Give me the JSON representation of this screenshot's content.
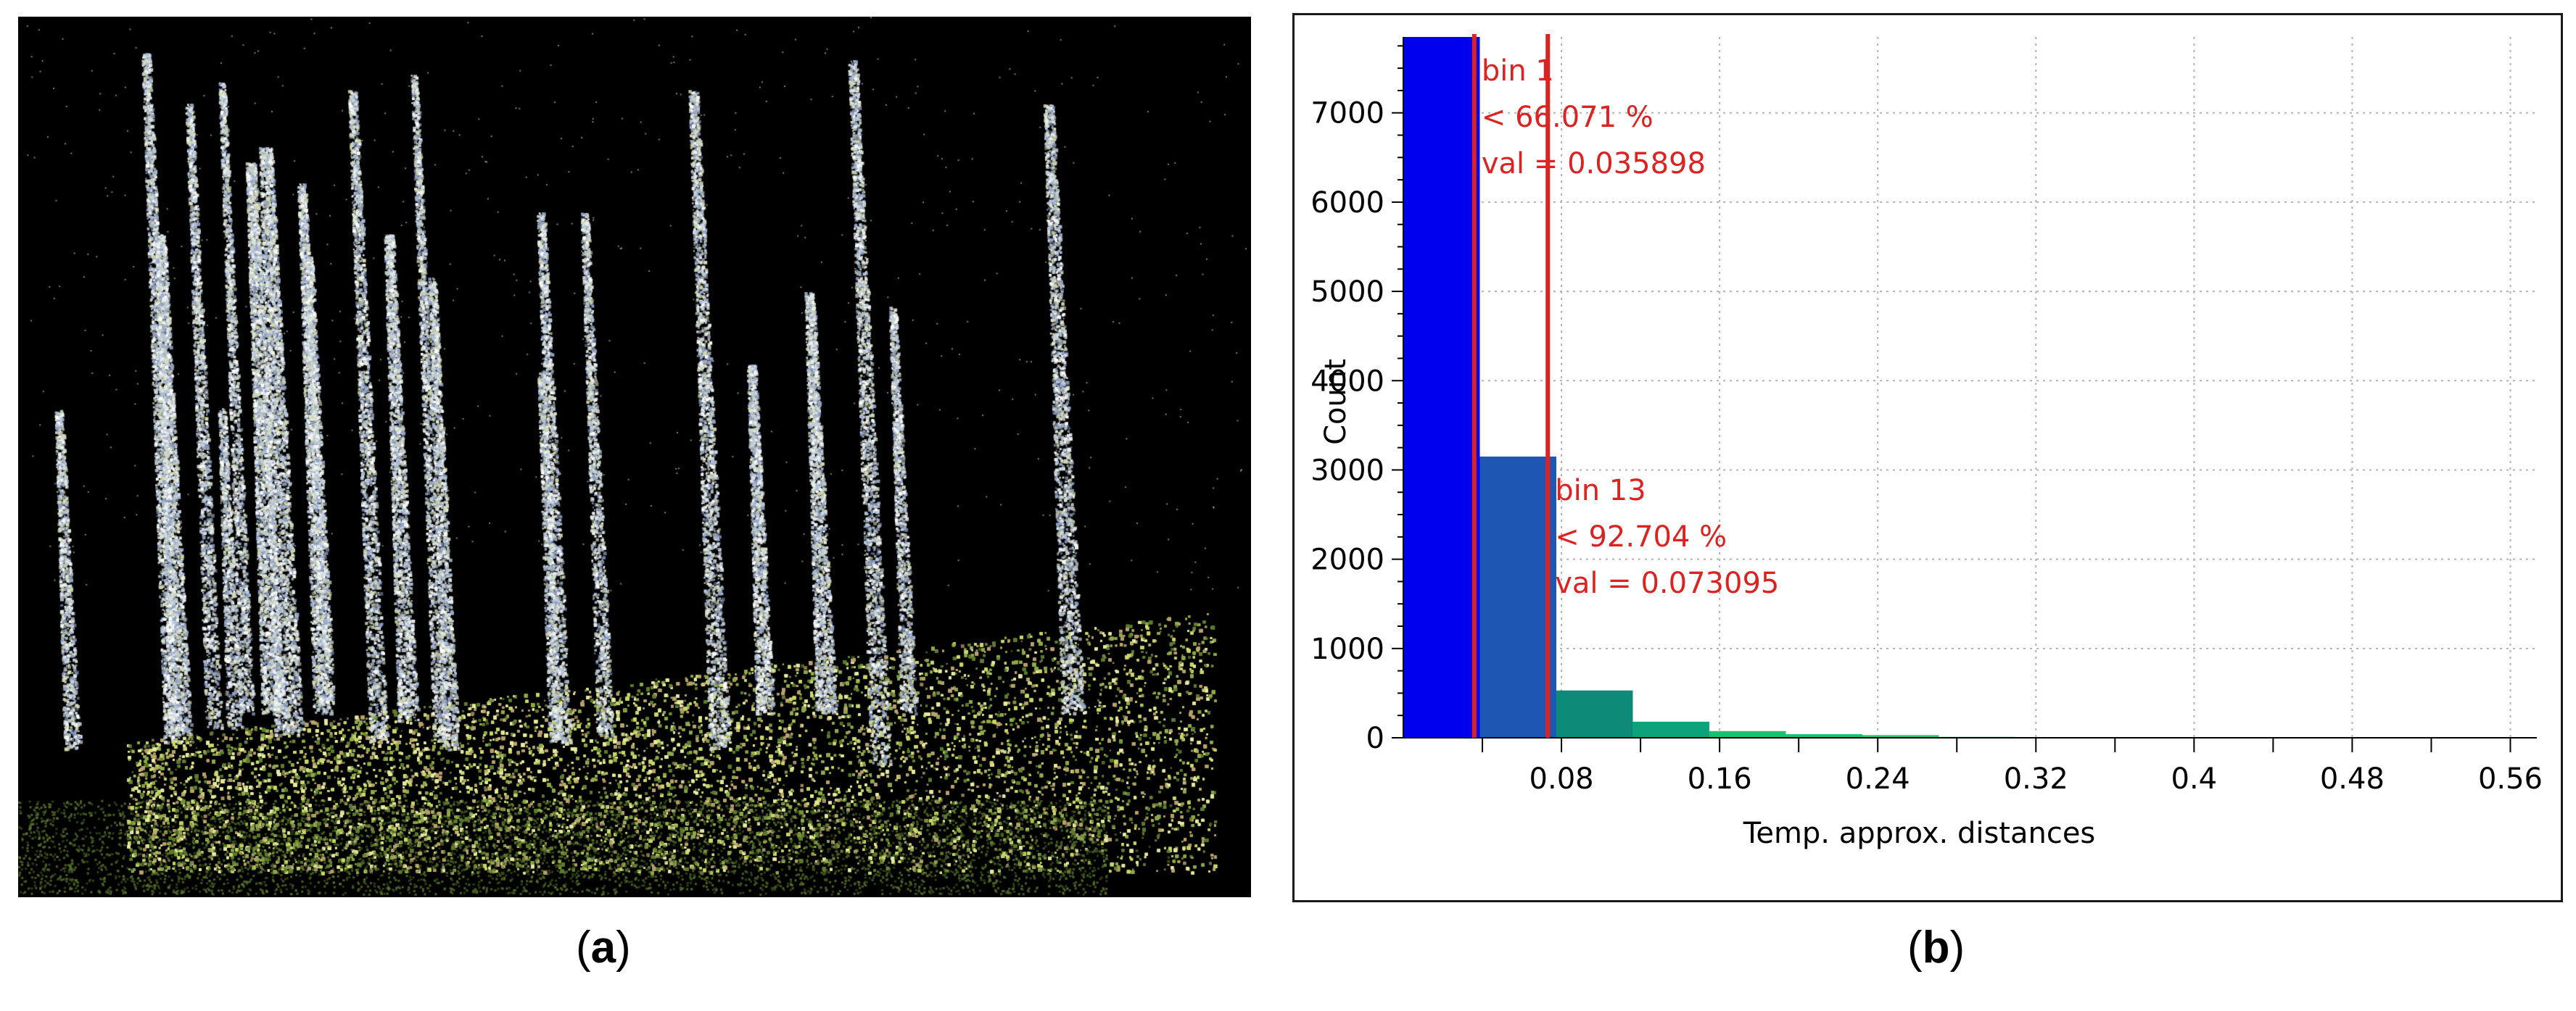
{
  "panels": {
    "a": {
      "open": "(",
      "letter": "a",
      "close": ")"
    },
    "b": {
      "open": "(",
      "letter": "b",
      "close": ")"
    }
  },
  "point_cloud": {
    "description_icon": "point-cloud-image",
    "background": "#000000",
    "ground_colors": [
      "#c9d66a",
      "#8fa84a",
      "#e6e8a0",
      "#5d7a2e",
      "#b8a070"
    ],
    "trunk_colors": [
      "#e8eef0",
      "#b8c8d8",
      "#8fa0c8",
      "#d0d8b0",
      "#ffffff"
    ]
  },
  "chart_data": {
    "type": "bar",
    "title": "",
    "xlabel": "Temp. approx. distances",
    "ylabel": "Count",
    "xlim": [
      0,
      0.5734
    ],
    "ylim": [
      0,
      7850
    ],
    "x_ticks": [
      0.08,
      0.16,
      0.24,
      0.32,
      0.4,
      0.48,
      0.56
    ],
    "x_tick_labels": [
      "0.08",
      "0.16",
      "0.24",
      "0.32",
      "0.4",
      "0.48",
      "0.56"
    ],
    "y_ticks": [
      0,
      1000,
      2000,
      3000,
      4000,
      5000,
      6000,
      7000
    ],
    "y_tick_labels": [
      "0",
      "1000",
      "2000",
      "3000",
      "4000",
      "5000",
      "6000",
      "7000"
    ],
    "grid": true,
    "bin_width": 0.0387,
    "bins": [
      {
        "start": 0.0,
        "count": 7850,
        "color": "#0000ee"
      },
      {
        "start": 0.0387,
        "count": 3150,
        "color": "#1e56b4"
      },
      {
        "start": 0.0774,
        "count": 530,
        "color": "#0e8a78"
      },
      {
        "start": 0.1161,
        "count": 180,
        "color": "#0da27a"
      },
      {
        "start": 0.1548,
        "count": 75,
        "color": "#19c06e"
      },
      {
        "start": 0.1935,
        "count": 40,
        "color": "#19c06e"
      },
      {
        "start": 0.2322,
        "count": 30,
        "color": "#2ec470"
      },
      {
        "start": 0.2709,
        "count": 10,
        "color": "#2ec470"
      }
    ],
    "markers": [
      {
        "x": 0.035898,
        "lines": [
          "bin 1",
          "< 66.071 %",
          "val = 0.035898"
        ],
        "anchor_count": 7850
      },
      {
        "x": 0.073095,
        "lines": [
          "bin 13",
          "< 92.704 %",
          "val = 0.073095"
        ],
        "anchor_count": 3150
      }
    ],
    "colors": {
      "marker": "#dd2222",
      "grid": "#b4b4b4",
      "axis": "#000000"
    }
  }
}
